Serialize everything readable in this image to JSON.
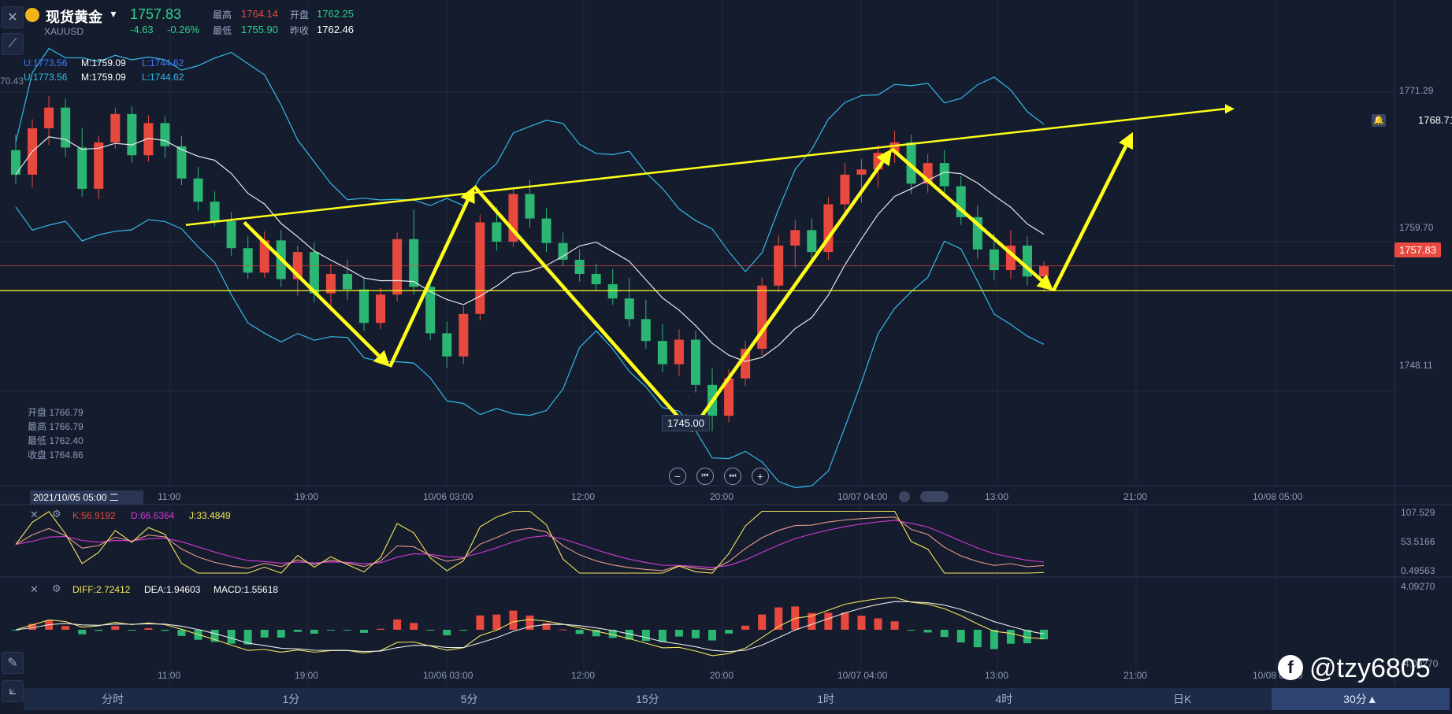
{
  "header": {
    "name": "现货黄金",
    "symbol": "XAUUSD",
    "price": "1757.83",
    "change": "-4.63",
    "change_pct": "-0.26%",
    "high_label": "最高",
    "high": "1764.14",
    "open_label": "开盘",
    "open": "1762.25",
    "low_label": "最低",
    "low": "1755.90",
    "prev_label": "昨收",
    "prev": "1762.46"
  },
  "boll_legend": [
    {
      "u": "U:1773.56",
      "m": "M:1759.09",
      "l": "L:1744.62"
    },
    {
      "u": "U:1773.56",
      "m": "M:1759.09",
      "l": "L:1744.62"
    }
  ],
  "left_cut_value": "70.43",
  "price_axis": [
    "1771.29",
    "1759.70",
    "1748.11"
  ],
  "alert_price": "1768.71",
  "current_price_tag": "1757.83",
  "low_marker": "1745.00",
  "candle_info": {
    "open": "开盘 1766.79",
    "high": "最高 1766.79",
    "low": "最低 1762.40",
    "close": "收盘 1764.86"
  },
  "time_axis": {
    "cursor_time": "2021/10/05 05:00 二",
    "labels": [
      "11:00",
      "19:00",
      "10/06 03:00",
      "12:00",
      "20:00",
      "10/07 04:00",
      "13:00",
      "21:00",
      "10/08 05:00"
    ]
  },
  "kdj": {
    "k": "K:56.9192",
    "d": "D:66.6364",
    "j": "J:33.4849",
    "axis": [
      "107.529",
      "53.5166",
      "0.49563"
    ]
  },
  "macd": {
    "diff": "DIFF:2.72412",
    "dea": "DEA:1.94603",
    "macd": "MACD:1.55618",
    "axis": [
      "4.09270",
      "-4.00270"
    ]
  },
  "bottom_time_labels": [
    "11:00",
    "19:00",
    "10/06 03:00",
    "12:00",
    "20:00",
    "10/07 04:00",
    "13:00",
    "21:00",
    "10/08 05:00"
  ],
  "period_tabs": [
    "分时",
    "1分",
    "5分",
    "15分",
    "1时",
    "4时",
    "日K",
    "30分▲"
  ],
  "watermark": "@tzy6805",
  "colors": {
    "up": "#e8493f",
    "down": "#2bb673",
    "annotation": "#ffff1a",
    "boll": "#33b9e6",
    "mid": "#e8e8e8"
  },
  "chart_data": {
    "type": "candlestick",
    "title": "现货黄金 XAUUSD 30分",
    "ohlc_30min": [
      [
        1766.8,
        1768.0,
        1764.2,
        1764.9
      ],
      [
        1764.9,
        1769.2,
        1763.9,
        1768.5
      ],
      [
        1768.5,
        1771.0,
        1767.2,
        1770.1
      ],
      [
        1770.1,
        1770.8,
        1766.3,
        1767.0
      ],
      [
        1767.0,
        1768.5,
        1763.2,
        1763.8
      ],
      [
        1763.8,
        1767.9,
        1763.0,
        1767.4
      ],
      [
        1767.4,
        1770.1,
        1766.9,
        1769.6
      ],
      [
        1769.6,
        1770.2,
        1765.8,
        1766.4
      ],
      [
        1766.4,
        1769.5,
        1765.9,
        1768.9
      ],
      [
        1768.9,
        1769.4,
        1766.2,
        1767.1
      ],
      [
        1767.1,
        1767.9,
        1764.1,
        1764.6
      ],
      [
        1764.6,
        1765.5,
        1762.1,
        1762.8
      ],
      [
        1762.8,
        1763.6,
        1760.9,
        1761.3
      ],
      [
        1761.3,
        1762.0,
        1758.6,
        1759.2
      ],
      [
        1759.2,
        1760.1,
        1756.8,
        1757.3
      ],
      [
        1757.3,
        1760.5,
        1756.9,
        1759.8
      ],
      [
        1759.8,
        1760.6,
        1756.2,
        1756.8
      ],
      [
        1756.8,
        1759.4,
        1755.5,
        1758.9
      ],
      [
        1758.9,
        1759.6,
        1755.0,
        1755.7
      ],
      [
        1755.7,
        1758.0,
        1754.3,
        1757.2
      ],
      [
        1757.2,
        1758.3,
        1755.2,
        1756.0
      ],
      [
        1756.0,
        1756.9,
        1752.8,
        1753.4
      ],
      [
        1753.4,
        1756.1,
        1752.9,
        1755.6
      ],
      [
        1755.6,
        1760.4,
        1755.1,
        1759.9
      ],
      [
        1759.9,
        1762.2,
        1755.6,
        1756.2
      ],
      [
        1756.2,
        1757.0,
        1752.1,
        1752.6
      ],
      [
        1752.6,
        1753.5,
        1749.9,
        1750.8
      ],
      [
        1750.8,
        1754.7,
        1750.2,
        1754.1
      ],
      [
        1754.1,
        1761.8,
        1753.6,
        1761.2
      ],
      [
        1761.2,
        1762.4,
        1759.0,
        1759.7
      ],
      [
        1759.7,
        1763.9,
        1759.3,
        1763.4
      ],
      [
        1763.4,
        1764.5,
        1760.8,
        1761.5
      ],
      [
        1761.5,
        1762.3,
        1758.9,
        1759.6
      ],
      [
        1759.6,
        1760.4,
        1757.8,
        1758.3
      ],
      [
        1758.3,
        1759.1,
        1756.6,
        1757.2
      ],
      [
        1757.2,
        1758.0,
        1755.9,
        1756.4
      ],
      [
        1756.4,
        1757.6,
        1754.8,
        1755.3
      ],
      [
        1755.3,
        1756.9,
        1753.1,
        1753.7
      ],
      [
        1753.7,
        1755.2,
        1751.4,
        1752.0
      ],
      [
        1752.0,
        1753.3,
        1749.6,
        1750.2
      ],
      [
        1750.2,
        1752.9,
        1749.3,
        1752.1
      ],
      [
        1752.1,
        1752.8,
        1748.0,
        1748.6
      ],
      [
        1748.6,
        1749.9,
        1745.0,
        1746.2
      ],
      [
        1746.2,
        1749.8,
        1745.7,
        1749.1
      ],
      [
        1749.1,
        1752.0,
        1748.5,
        1751.4
      ],
      [
        1751.4,
        1756.9,
        1750.9,
        1756.3
      ],
      [
        1756.3,
        1760.2,
        1755.8,
        1759.4
      ],
      [
        1759.4,
        1761.4,
        1757.7,
        1760.6
      ],
      [
        1760.6,
        1761.5,
        1758.2,
        1758.9
      ],
      [
        1758.9,
        1763.2,
        1758.3,
        1762.6
      ],
      [
        1762.6,
        1765.8,
        1761.9,
        1764.9
      ],
      [
        1764.9,
        1766.1,
        1762.7,
        1765.3
      ],
      [
        1765.3,
        1767.2,
        1763.9,
        1766.6
      ],
      [
        1766.6,
        1768.3,
        1765.8,
        1767.4
      ],
      [
        1767.4,
        1768.0,
        1763.4,
        1764.2
      ],
      [
        1764.2,
        1766.5,
        1763.5,
        1765.8
      ],
      [
        1765.8,
        1766.8,
        1763.2,
        1764.0
      ],
      [
        1764.0,
        1764.8,
        1761.0,
        1761.6
      ],
      [
        1761.6,
        1762.5,
        1758.4,
        1759.1
      ],
      [
        1759.1,
        1760.3,
        1756.7,
        1757.5
      ],
      [
        1757.5,
        1760.6,
        1756.8,
        1759.4
      ],
      [
        1759.4,
        1760.1,
        1756.3,
        1757.0
      ],
      [
        1757.0,
        1758.2,
        1755.8,
        1757.8
      ]
    ],
    "annotations": {
      "support_level": 1755.9,
      "ascending_resistance": [
        1761.0,
        1770.0
      ],
      "swing_lows": [
        1750.0,
        1745.0,
        1755.9
      ],
      "swing_highs": [
        1764.0,
        1766.9,
        1770.5
      ]
    },
    "ylim": [
      1742,
      1776
    ]
  }
}
